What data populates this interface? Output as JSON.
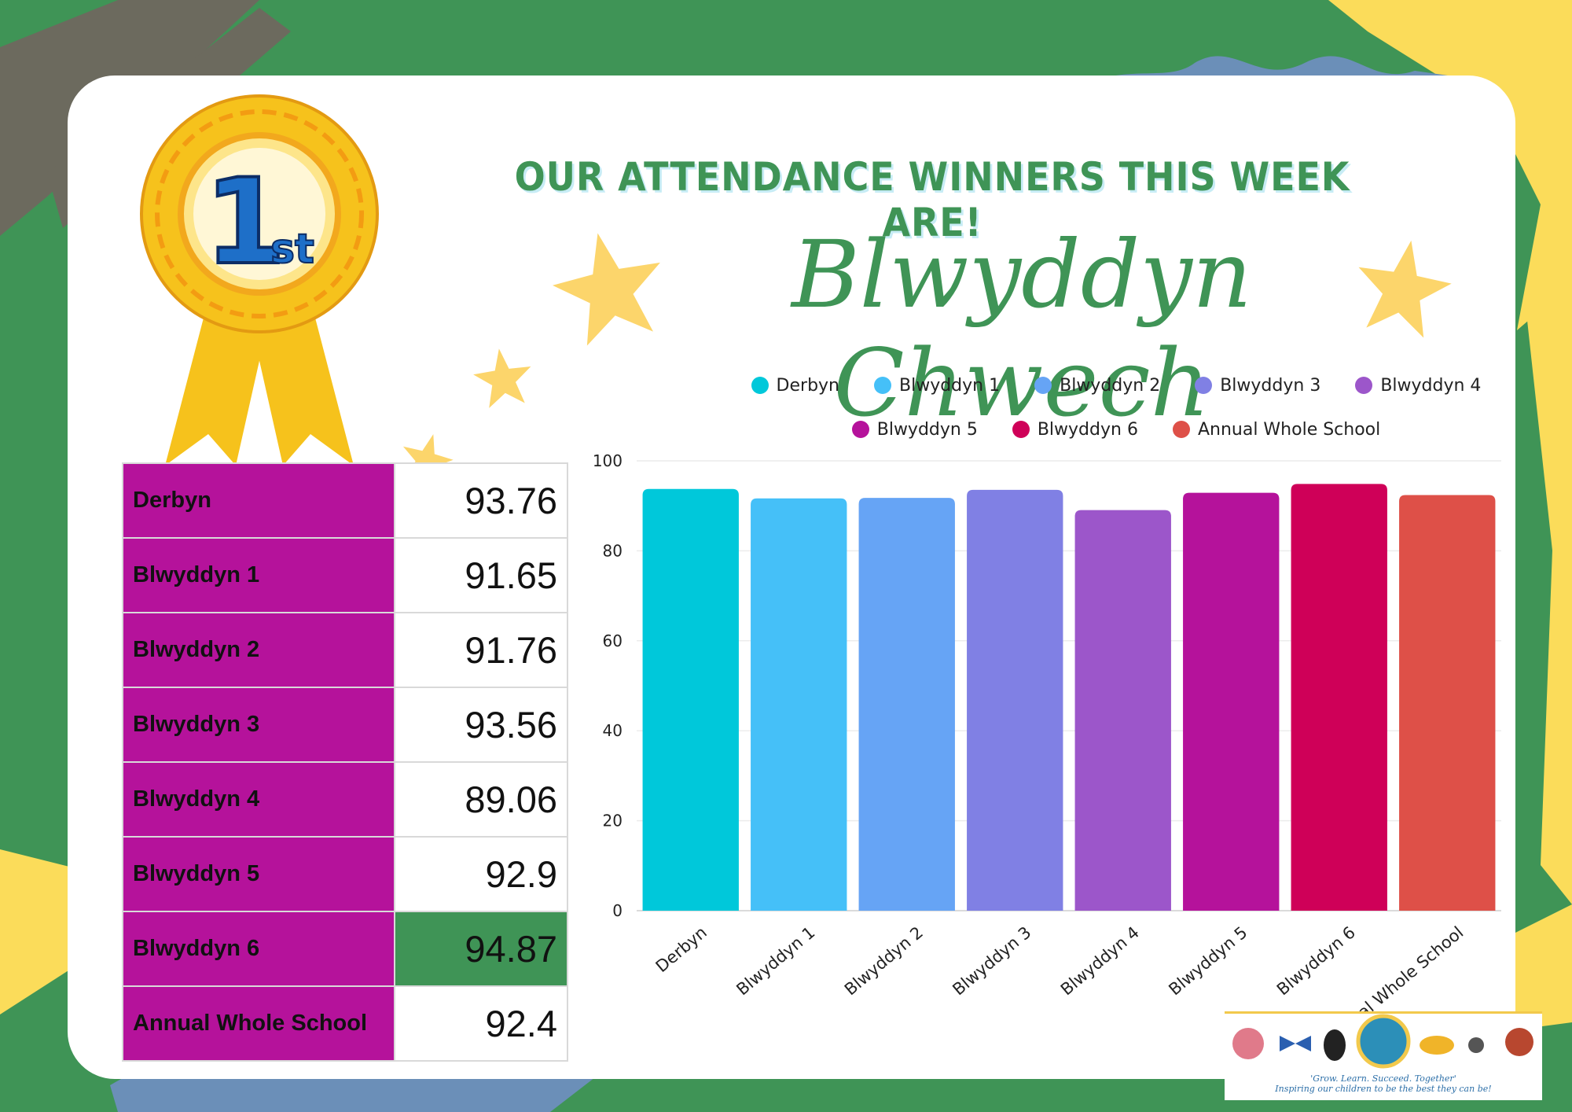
{
  "headline": "OUR ATTENDANCE WINNERS THIS WEEK ARE!",
  "winner": "Blwyddyn Chwech",
  "badge": {
    "number": "1",
    "suffix": "st"
  },
  "colors": {
    "background": "#3f9456",
    "accent_yellow": "#ffd94d",
    "accent_blue": "#6b8fb8",
    "table_label": "#b5129b",
    "highlight": "#3f9456"
  },
  "table": {
    "rows": [
      {
        "label": "Derbyn",
        "value": "93.76"
      },
      {
        "label": "Blwyddyn 1",
        "value": "91.65"
      },
      {
        "label": "Blwyddyn 2",
        "value": "91.76"
      },
      {
        "label": "Blwyddyn 3",
        "value": "93.56"
      },
      {
        "label": "Blwyddyn 4",
        "value": "89.06"
      },
      {
        "label": "Blwyddyn 5",
        "value": "92.9"
      },
      {
        "label": "Blwyddyn 6",
        "value": "94.87",
        "highlight": true
      },
      {
        "label": "Annual Whole School",
        "value": "92.4"
      }
    ]
  },
  "chart_data": {
    "type": "bar",
    "categories": [
      "Derbyn",
      "Blwyddyn 1",
      "Blwyddyn 2",
      "Blwyddyn 3",
      "Blwyddyn 4",
      "Blwyddyn 5",
      "Blwyddyn 6",
      "Annual Whole School"
    ],
    "values": [
      93.76,
      91.65,
      91.76,
      93.56,
      89.06,
      92.9,
      94.87,
      92.4
    ],
    "colors": [
      "#00c8da",
      "#45c0f8",
      "#66a4f5",
      "#8080e4",
      "#9c56ca",
      "#b5129b",
      "#cf0058",
      "#de5048"
    ],
    "yticks": [
      "0",
      "20",
      "40",
      "60",
      "80",
      "100"
    ],
    "ylim": [
      0,
      100
    ],
    "grid": true,
    "legend": "top"
  },
  "logo_strip": {
    "motto": "'Grow. Learn. Succeed. Together'",
    "tagline": "Inspiring our children to be the best they can be!"
  }
}
